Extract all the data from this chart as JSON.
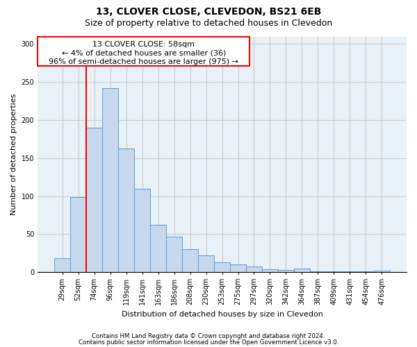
{
  "title": "13, CLOVER CLOSE, CLEVEDON, BS21 6EB",
  "subtitle": "Size of property relative to detached houses in Clevedon",
  "xlabel": "Distribution of detached houses by size in Clevedon",
  "ylabel": "Number of detached properties",
  "footer_line1": "Contains HM Land Registry data © Crown copyright and database right 2024.",
  "footer_line2": "Contains public sector information licensed under the Open Government Licence v3.0.",
  "categories": [
    "29sqm",
    "52sqm",
    "74sqm",
    "96sqm",
    "119sqm",
    "141sqm",
    "163sqm",
    "186sqm",
    "208sqm",
    "230sqm",
    "253sqm",
    "275sqm",
    "297sqm",
    "320sqm",
    "342sqm",
    "364sqm",
    "387sqm",
    "409sqm",
    "431sqm",
    "454sqm",
    "476sqm"
  ],
  "values": [
    18,
    99,
    190,
    242,
    163,
    110,
    62,
    47,
    30,
    22,
    13,
    10,
    7,
    4,
    3,
    5,
    1,
    1,
    1,
    1,
    2
  ],
  "bar_color": "#c5d8ed",
  "bar_edge_color": "#5b9bd5",
  "annotation_text_line1": "13 CLOVER CLOSE: 58sqm",
  "annotation_text_line2": "← 4% of detached houses are smaller (36)",
  "annotation_text_line3": "96% of semi-detached houses are larger (975) →",
  "annotation_box_color": "white",
  "annotation_box_edge_color": "red",
  "red_line_color": "red",
  "red_line_x": 1.5,
  "ylim": [
    0,
    310
  ],
  "yticks": [
    0,
    50,
    100,
    150,
    200,
    250,
    300
  ],
  "grid_color": "#cccccc",
  "bg_color": "#e8f0f8",
  "plot_bg_color": "white",
  "title_fontsize": 10,
  "subtitle_fontsize": 9,
  "annotation_fontsize": 8,
  "ylabel_fontsize": 8,
  "xlabel_fontsize": 8,
  "tick_fontsize": 7
}
